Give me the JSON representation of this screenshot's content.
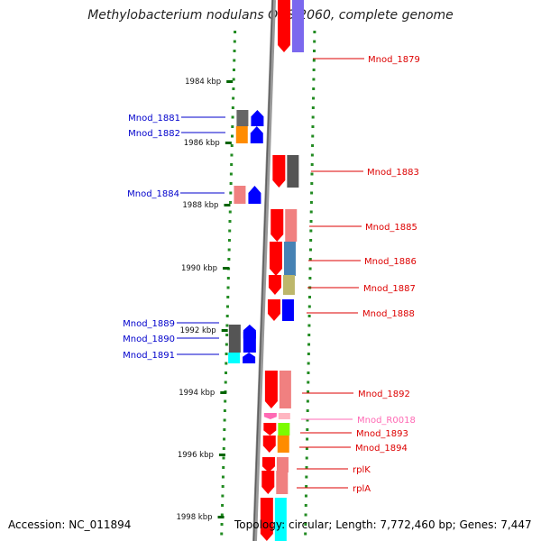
{
  "header": {
    "title": "Methylobacterium nodulans ORS 2060, complete genome"
  },
  "footer": {
    "accession": "Accession: NC_011894",
    "topology": "Topology: circular; Length: 7,772,460 bp; Genes: 7,447"
  },
  "ticks": [
    {
      "label": "1984 kbp"
    },
    {
      "label": "1986 kbp"
    },
    {
      "label": "1988 kbp"
    },
    {
      "label": "1990 kbp"
    },
    {
      "label": "1992 kbp"
    },
    {
      "label": "1994 kbp"
    },
    {
      "label": "1996 kbp"
    },
    {
      "label": "1998 kbp"
    }
  ],
  "genes": [
    {
      "label": "Mnod_1879",
      "strand": "+",
      "color": "#ff0000",
      "color2": "#7b68ee"
    },
    {
      "label": "Mnod_1881",
      "strand": "-",
      "color": "#0000ff",
      "color2": "#666666"
    },
    {
      "label": "Mnod_1882",
      "strand": "-",
      "color": "#0000ff",
      "color2": "#ff8c00"
    },
    {
      "label": "Mnod_1883",
      "strand": "+",
      "color": "#ff0000",
      "color2": "#555555"
    },
    {
      "label": "Mnod_1884",
      "strand": "-",
      "color": "#0000ff",
      "color2": "#f08080"
    },
    {
      "label": "Mnod_1885",
      "strand": "+",
      "color": "#ff0000",
      "color2": "#f08080"
    },
    {
      "label": "Mnod_1886",
      "strand": "+",
      "color": "#ff0000",
      "color2": "#4682b4"
    },
    {
      "label": "Mnod_1887",
      "strand": "+",
      "color": "#ff0000",
      "color2": "#bdb76b"
    },
    {
      "label": "Mnod_1888",
      "strand": "+",
      "color": "#ff0000",
      "color2": "#0000ff"
    },
    {
      "label": "Mnod_1889",
      "strand": "-",
      "color": "#0000ff",
      "color2": "#555555"
    },
    {
      "label": "Mnod_1890",
      "strand": "-",
      "color": "#0000ff",
      "color2": "#555555"
    },
    {
      "label": "Mnod_1891",
      "strand": "-",
      "color": "#0000ff",
      "color2": "#00ffff"
    },
    {
      "label": "Mnod_1892",
      "strand": "+",
      "color": "#ff0000",
      "color2": "#f08080"
    },
    {
      "label": "Mnod_R0018",
      "strand": "+",
      "color": "#ff69b4",
      "color2": "#ffb6c1"
    },
    {
      "label": "Mnod_1893",
      "strand": "+",
      "color": "#ff0000",
      "color2": "#7cfc00"
    },
    {
      "label": "Mnod_1894",
      "strand": "+",
      "color": "#ff0000",
      "color2": "#ff8c00"
    },
    {
      "label": "rplK",
      "strand": "+",
      "color": "#ff0000",
      "color2": "#f08080"
    },
    {
      "label": "rplA",
      "strand": "+",
      "color": "#ff0000",
      "color2": "#f08080"
    },
    {
      "label": "",
      "strand": "+",
      "color": "#ff0000",
      "color2": "#00ffff"
    }
  ],
  "colors": {
    "forward_label": "#dd0000",
    "reverse_label": "#0000cc",
    "rna_label": "#ff69b4",
    "backbone": "#808080",
    "tick": "#006400",
    "dots": "#228b22"
  }
}
